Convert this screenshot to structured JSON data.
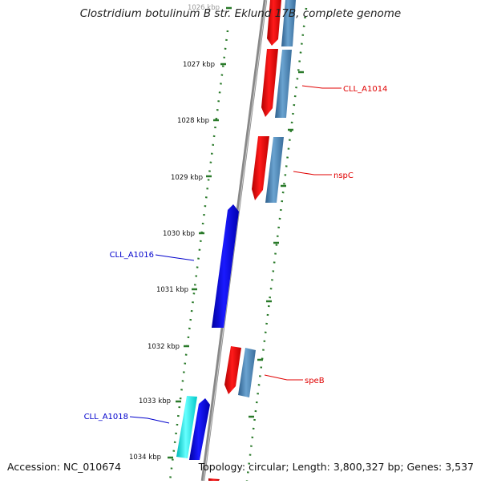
{
  "title": "Clostridium botulinum B str. Eklund 17B, complete genome",
  "footer": {
    "accession": "Accession: NC_010674",
    "summary": "Topology: circular; Length: 3,800,327 bp; Genes: 3,537"
  },
  "ticks": [
    {
      "label": "1026 kbp"
    },
    {
      "label": "1027 kbp"
    },
    {
      "label": "1028 kbp"
    },
    {
      "label": "1029 kbp"
    },
    {
      "label": "1030 kbp"
    },
    {
      "label": "1031 kbp"
    },
    {
      "label": "1032 kbp"
    },
    {
      "label": "1033 kbp"
    },
    {
      "label": "1034 kbp"
    }
  ],
  "gene_labels": [
    {
      "name": "CLL_A1014",
      "color": "#e00000"
    },
    {
      "name": "nspC",
      "color": "#e00000"
    },
    {
      "name": "CLL_A1016",
      "color": "#0000cc"
    },
    {
      "name": "speB",
      "color": "#e00000"
    },
    {
      "name": "CLL_A1018",
      "color": "#0000cc"
    }
  ],
  "colors": {
    "forward_cds": "#ff0000",
    "reverse_cds": "#0000ee",
    "forward_gene_track": "#4a86b8",
    "reverse_gene_track": "#00e5e5",
    "backbone": "#888888",
    "tick_marks": "#2a7a2a"
  }
}
